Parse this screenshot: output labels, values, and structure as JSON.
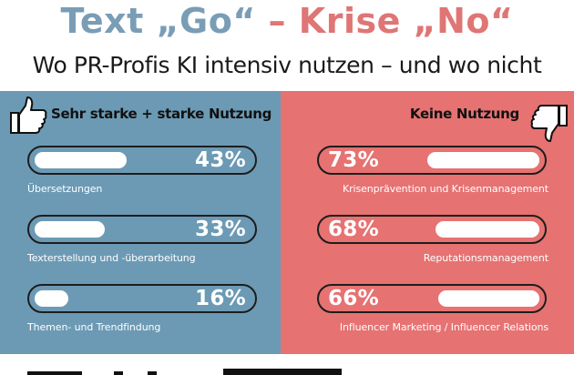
{
  "headline": {
    "left_word": "Text",
    "left_quote": "„Go“",
    "dash": "–",
    "right_word": "Krise",
    "right_quote": "„No“"
  },
  "subtitle": "Wo PR-Profis KI intensiv nutzen – und wo nicht",
  "colors": {
    "blue_panel": "#6c9ab4",
    "red_panel": "#e67272",
    "headline_blue": "#7a9db6",
    "headline_red": "#e07575"
  },
  "chart_data": [
    {
      "type": "bar",
      "title": "Sehr starke + starke Nutzung",
      "icon": "thumbs-up-icon",
      "unit": "%",
      "categories": [
        "Übersetzungen",
        "Texterstellung und -überarbeitung",
        "Themen- und Trendfindung"
      ],
      "values": [
        43,
        33,
        16
      ],
      "labels": [
        "43%",
        "33%",
        "16%"
      ],
      "ylim": [
        0,
        100
      ]
    },
    {
      "type": "bar",
      "title": "Keine Nutzung",
      "icon": "thumbs-down-icon",
      "unit": "%",
      "categories": [
        "Krisenprävention und Krisenmanagement",
        "Reputationsmanagement",
        "Influencer Marketing / Influencer Relations"
      ],
      "values": [
        73,
        68,
        66
      ],
      "labels": [
        "73%",
        "68%",
        "66%"
      ],
      "ylim": [
        0,
        100
      ]
    }
  ]
}
